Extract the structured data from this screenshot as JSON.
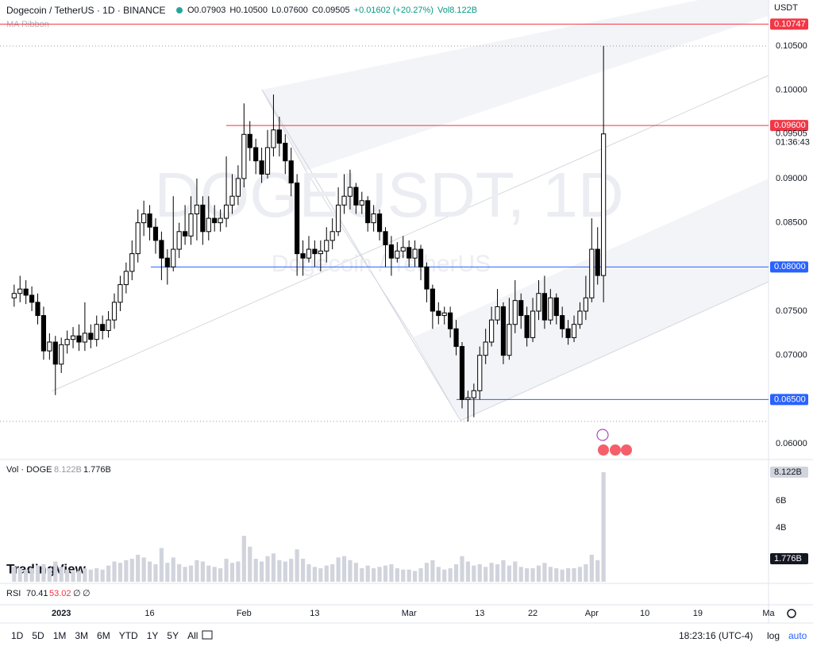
{
  "header": {
    "symbol": "Dogecoin / TetherUS · 1D · BINANCE",
    "ohlc": [
      "O0.07903",
      "H0.10500",
      "L0.07600",
      "C0.09505",
      "+0.01602 (+20.27%)",
      "Vol8.122B"
    ],
    "indicator": "MA Ribbon",
    "currency": "USDT"
  },
  "watermark": {
    "ticker": "DOGEUSDT, 1D",
    "name": "Dogecoin / TetherUS"
  },
  "chart_data": {
    "type": "candlestick",
    "x": [
      -8,
      -7,
      -6,
      -5,
      -4,
      -3,
      -2,
      -1,
      0,
      1,
      2,
      3,
      4,
      5,
      6,
      7,
      8,
      9,
      10,
      11,
      12,
      13,
      14,
      15,
      16,
      17,
      18,
      19,
      20,
      21,
      22,
      23,
      24,
      25,
      26,
      27,
      28,
      29,
      30,
      31,
      32,
      33,
      34,
      35,
      36,
      37,
      38,
      39,
      40,
      41,
      42,
      43,
      44,
      45,
      46,
      47,
      48,
      49,
      50,
      51,
      52,
      53,
      54,
      55,
      56,
      57,
      58,
      59,
      60,
      61,
      62,
      63,
      64,
      65,
      66,
      67,
      68,
      69,
      70,
      71,
      72,
      73,
      74,
      75,
      76,
      77,
      78,
      79,
      80,
      81,
      82,
      83,
      84,
      85,
      86,
      87,
      88,
      89,
      90,
      91,
      92
    ],
    "open": [
      0.0765,
      0.077,
      0.0775,
      0.0768,
      0.076,
      0.0745,
      0.0705,
      0.0715,
      0.069,
      0.0712,
      0.0718,
      0.0722,
      0.0715,
      0.0725,
      0.0718,
      0.0735,
      0.0728,
      0.074,
      0.076,
      0.078,
      0.0795,
      0.0815,
      0.085,
      0.086,
      0.0845,
      0.083,
      0.081,
      0.08,
      0.082,
      0.084,
      0.0835,
      0.086,
      0.087,
      0.084,
      0.0855,
      0.085,
      0.0855,
      0.087,
      0.088,
      0.09,
      0.095,
      0.0935,
      0.092,
      0.0905,
      0.0935,
      0.0955,
      0.094,
      0.092,
      0.0895,
      0.0815,
      0.081,
      0.082,
      0.0815,
      0.0818,
      0.083,
      0.084,
      0.087,
      0.088,
      0.089,
      0.087,
      0.0875,
      0.085,
      0.086,
      0.084,
      0.0825,
      0.081,
      0.0818,
      0.0822,
      0.081,
      0.082,
      0.08,
      0.0775,
      0.075,
      0.0745,
      0.0748,
      0.073,
      0.071,
      0.065,
      0.0652,
      0.066,
      0.07,
      0.0715,
      0.074,
      0.0755,
      0.07,
      0.0735,
      0.0762,
      0.0745,
      0.072,
      0.075,
      0.077,
      0.074,
      0.0765,
      0.0745,
      0.073,
      0.072,
      0.0735,
      0.075,
      0.0765,
      0.082,
      0.07903
    ],
    "high": [
      0.078,
      0.079,
      0.0785,
      0.0778,
      0.077,
      0.0755,
      0.0725,
      0.0722,
      0.072,
      0.0728,
      0.0732,
      0.0735,
      0.076,
      0.0735,
      0.0745,
      0.0745,
      0.075,
      0.077,
      0.079,
      0.0805,
      0.083,
      0.0865,
      0.0875,
      0.087,
      0.0855,
      0.084,
      0.082,
      0.088,
      0.085,
      0.087,
      0.088,
      0.09,
      0.088,
      0.088,
      0.087,
      0.0865,
      0.0925,
      0.0905,
      0.0915,
      0.0985,
      0.0965,
      0.0945,
      0.0935,
      0.0955,
      0.0995,
      0.097,
      0.095,
      0.0935,
      0.0905,
      0.083,
      0.0835,
      0.083,
      0.083,
      0.0845,
      0.0855,
      0.089,
      0.0905,
      0.091,
      0.0895,
      0.0885,
      0.088,
      0.087,
      0.0865,
      0.0845,
      0.0835,
      0.0828,
      0.0835,
      0.083,
      0.083,
      0.0825,
      0.0805,
      0.078,
      0.076,
      0.0755,
      0.0755,
      0.074,
      0.0715,
      0.066,
      0.0668,
      0.071,
      0.073,
      0.0755,
      0.0775,
      0.076,
      0.0765,
      0.0785,
      0.077,
      0.0755,
      0.0765,
      0.0785,
      0.079,
      0.0775,
      0.077,
      0.0755,
      0.074,
      0.0745,
      0.076,
      0.079,
      0.0855,
      0.0845,
      0.105
    ],
    "low": [
      0.0755,
      0.076,
      0.0758,
      0.075,
      0.0735,
      0.0695,
      0.0695,
      0.0655,
      0.068,
      0.0702,
      0.0708,
      0.0705,
      0.0705,
      0.0708,
      0.071,
      0.0718,
      0.072,
      0.073,
      0.075,
      0.077,
      0.0785,
      0.0805,
      0.0835,
      0.083,
      0.0815,
      0.0785,
      0.078,
      0.0795,
      0.081,
      0.0825,
      0.0825,
      0.083,
      0.0825,
      0.083,
      0.084,
      0.084,
      0.0845,
      0.086,
      0.087,
      0.089,
      0.092,
      0.0905,
      0.0895,
      0.09,
      0.0925,
      0.0925,
      0.0905,
      0.088,
      0.079,
      0.079,
      0.0805,
      0.08,
      0.0795,
      0.0805,
      0.082,
      0.0835,
      0.086,
      0.0865,
      0.086,
      0.086,
      0.084,
      0.084,
      0.083,
      0.08,
      0.079,
      0.0805,
      0.081,
      0.08,
      0.08,
      0.0785,
      0.076,
      0.073,
      0.0735,
      0.0735,
      0.072,
      0.07,
      0.064,
      0.0625,
      0.063,
      0.065,
      0.069,
      0.071,
      0.0735,
      0.069,
      0.0695,
      0.0725,
      0.073,
      0.071,
      0.0715,
      0.074,
      0.073,
      0.0735,
      0.0735,
      0.072,
      0.0712,
      0.0715,
      0.073,
      0.074,
      0.076,
      0.078,
      0.076
    ],
    "close": [
      0.077,
      0.0775,
      0.0768,
      0.076,
      0.0745,
      0.0705,
      0.0715,
      0.069,
      0.0712,
      0.0718,
      0.0722,
      0.0715,
      0.0725,
      0.0718,
      0.0735,
      0.0728,
      0.074,
      0.076,
      0.078,
      0.0795,
      0.0815,
      0.085,
      0.086,
      0.0845,
      0.083,
      0.081,
      0.08,
      0.082,
      0.084,
      0.0835,
      0.086,
      0.087,
      0.084,
      0.0855,
      0.085,
      0.0855,
      0.087,
      0.088,
      0.09,
      0.095,
      0.0935,
      0.092,
      0.0905,
      0.0935,
      0.0955,
      0.094,
      0.092,
      0.0895,
      0.0815,
      0.081,
      0.082,
      0.0815,
      0.0818,
      0.083,
      0.084,
      0.087,
      0.088,
      0.089,
      0.087,
      0.0875,
      0.085,
      0.086,
      0.084,
      0.0825,
      0.081,
      0.0818,
      0.0822,
      0.081,
      0.082,
      0.08,
      0.0775,
      0.075,
      0.0745,
      0.0748,
      0.073,
      0.071,
      0.065,
      0.0652,
      0.066,
      0.07,
      0.0715,
      0.074,
      0.0755,
      0.07,
      0.0735,
      0.0762,
      0.0745,
      0.072,
      0.075,
      0.077,
      0.074,
      0.0765,
      0.0745,
      0.073,
      0.072,
      0.0735,
      0.075,
      0.0765,
      0.082,
      0.07903,
      0.09505
    ],
    "xlim": [
      -10.4,
      120
    ],
    "xticks": [
      {
        "value": 0,
        "label": "2023"
      },
      {
        "value": 15,
        "label": "16"
      },
      {
        "value": 31,
        "label": "Feb"
      },
      {
        "value": 43,
        "label": "13"
      },
      {
        "value": 59,
        "label": "Mar"
      },
      {
        "value": 71,
        "label": "13"
      },
      {
        "value": 80,
        "label": "22"
      },
      {
        "value": 90,
        "label": "Apr"
      },
      {
        "value": 99,
        "label": "10"
      },
      {
        "value": 108,
        "label": "19"
      },
      {
        "value": 120,
        "label": "Ma"
      }
    ],
    "ylim": [
      0.0583,
      0.1102
    ],
    "yticks": [
      {
        "value": 0.06,
        "label": "0.06000"
      },
      {
        "value": 0.065,
        "label": "0.06500"
      },
      {
        "value": 0.07,
        "label": "0.07000"
      },
      {
        "value": 0.075,
        "label": "0.07500"
      },
      {
        "value": 0.08,
        "label": "0.08000"
      },
      {
        "value": 0.085,
        "label": "0.08500"
      },
      {
        "value": 0.09,
        "label": "0.09000"
      },
      {
        "value": 0.1,
        "label": "0.10000"
      },
      {
        "value": 0.105,
        "label": "0.10500"
      }
    ],
    "levels": [
      {
        "value": 0.10747,
        "label": "0.10747",
        "color": "#f23645"
      },
      {
        "value": 0.096,
        "label": "0.09600",
        "color": "#f23645"
      },
      {
        "value": 0.08,
        "label": "0.08000",
        "color": "#2962ff"
      },
      {
        "value": 0.065,
        "label": "0.06500",
        "color": "#2962ff"
      }
    ],
    "last_price_label": "0.09505",
    "countdown": "01:36:43",
    "up_color": "#ffffff",
    "down_color": "#000000"
  },
  "volume": {
    "title": "Vol · DOGE",
    "last_label": "8.122B",
    "ma_label": "1.776B",
    "color": "#d1d4dc",
    "ylim": [
      0,
      9
    ],
    "yticks": [
      {
        "value": 4,
        "label": "4B"
      },
      {
        "value": 6,
        "label": "6B"
      }
    ],
    "values": [
      1.1,
      1.0,
      0.9,
      1.0,
      1.2,
      1.3,
      1.0,
      1.5,
      1.1,
      0.9,
      0.8,
      0.8,
      1.0,
      0.9,
      1.0,
      0.9,
      1.2,
      1.5,
      1.4,
      1.6,
      1.7,
      2.0,
      1.8,
      1.5,
      1.3,
      2.5,
      1.4,
      1.8,
      1.3,
      1.1,
      1.2,
      1.6,
      1.5,
      1.2,
      1.1,
      1.0,
      1.7,
      1.4,
      1.5,
      3.4,
      2.6,
      1.7,
      1.5,
      1.9,
      2.1,
      1.6,
      1.5,
      1.7,
      2.4,
      1.7,
      1.3,
      1.1,
      1.0,
      1.2,
      1.3,
      1.8,
      1.9,
      1.6,
      1.4,
      1.0,
      1.2,
      1.0,
      1.1,
      1.2,
      1.3,
      1.0,
      0.9,
      0.9,
      0.8,
      1.0,
      1.4,
      1.6,
      1.1,
      0.9,
      1.0,
      1.3,
      1.9,
      1.5,
      1.2,
      1.3,
      1.1,
      1.4,
      1.3,
      1.6,
      1.2,
      1.5,
      1.1,
      1.0,
      1.0,
      1.2,
      1.4,
      1.1,
      1.0,
      0.9,
      1.0,
      1.0,
      1.1,
      1.3,
      2.0,
      1.6,
      8.122
    ]
  },
  "rsi": {
    "title": "RSI",
    "values_text": [
      "70.41",
      "53.02",
      "∅",
      "∅"
    ]
  },
  "toolbar": {
    "ranges": [
      "1D",
      "5D",
      "1M",
      "3M",
      "6M",
      "YTD",
      "1Y",
      "5Y",
      "All"
    ],
    "time": "18:23:16 (UTC-4)",
    "log": "log",
    "auto": "auto"
  },
  "brand": "TradingView"
}
